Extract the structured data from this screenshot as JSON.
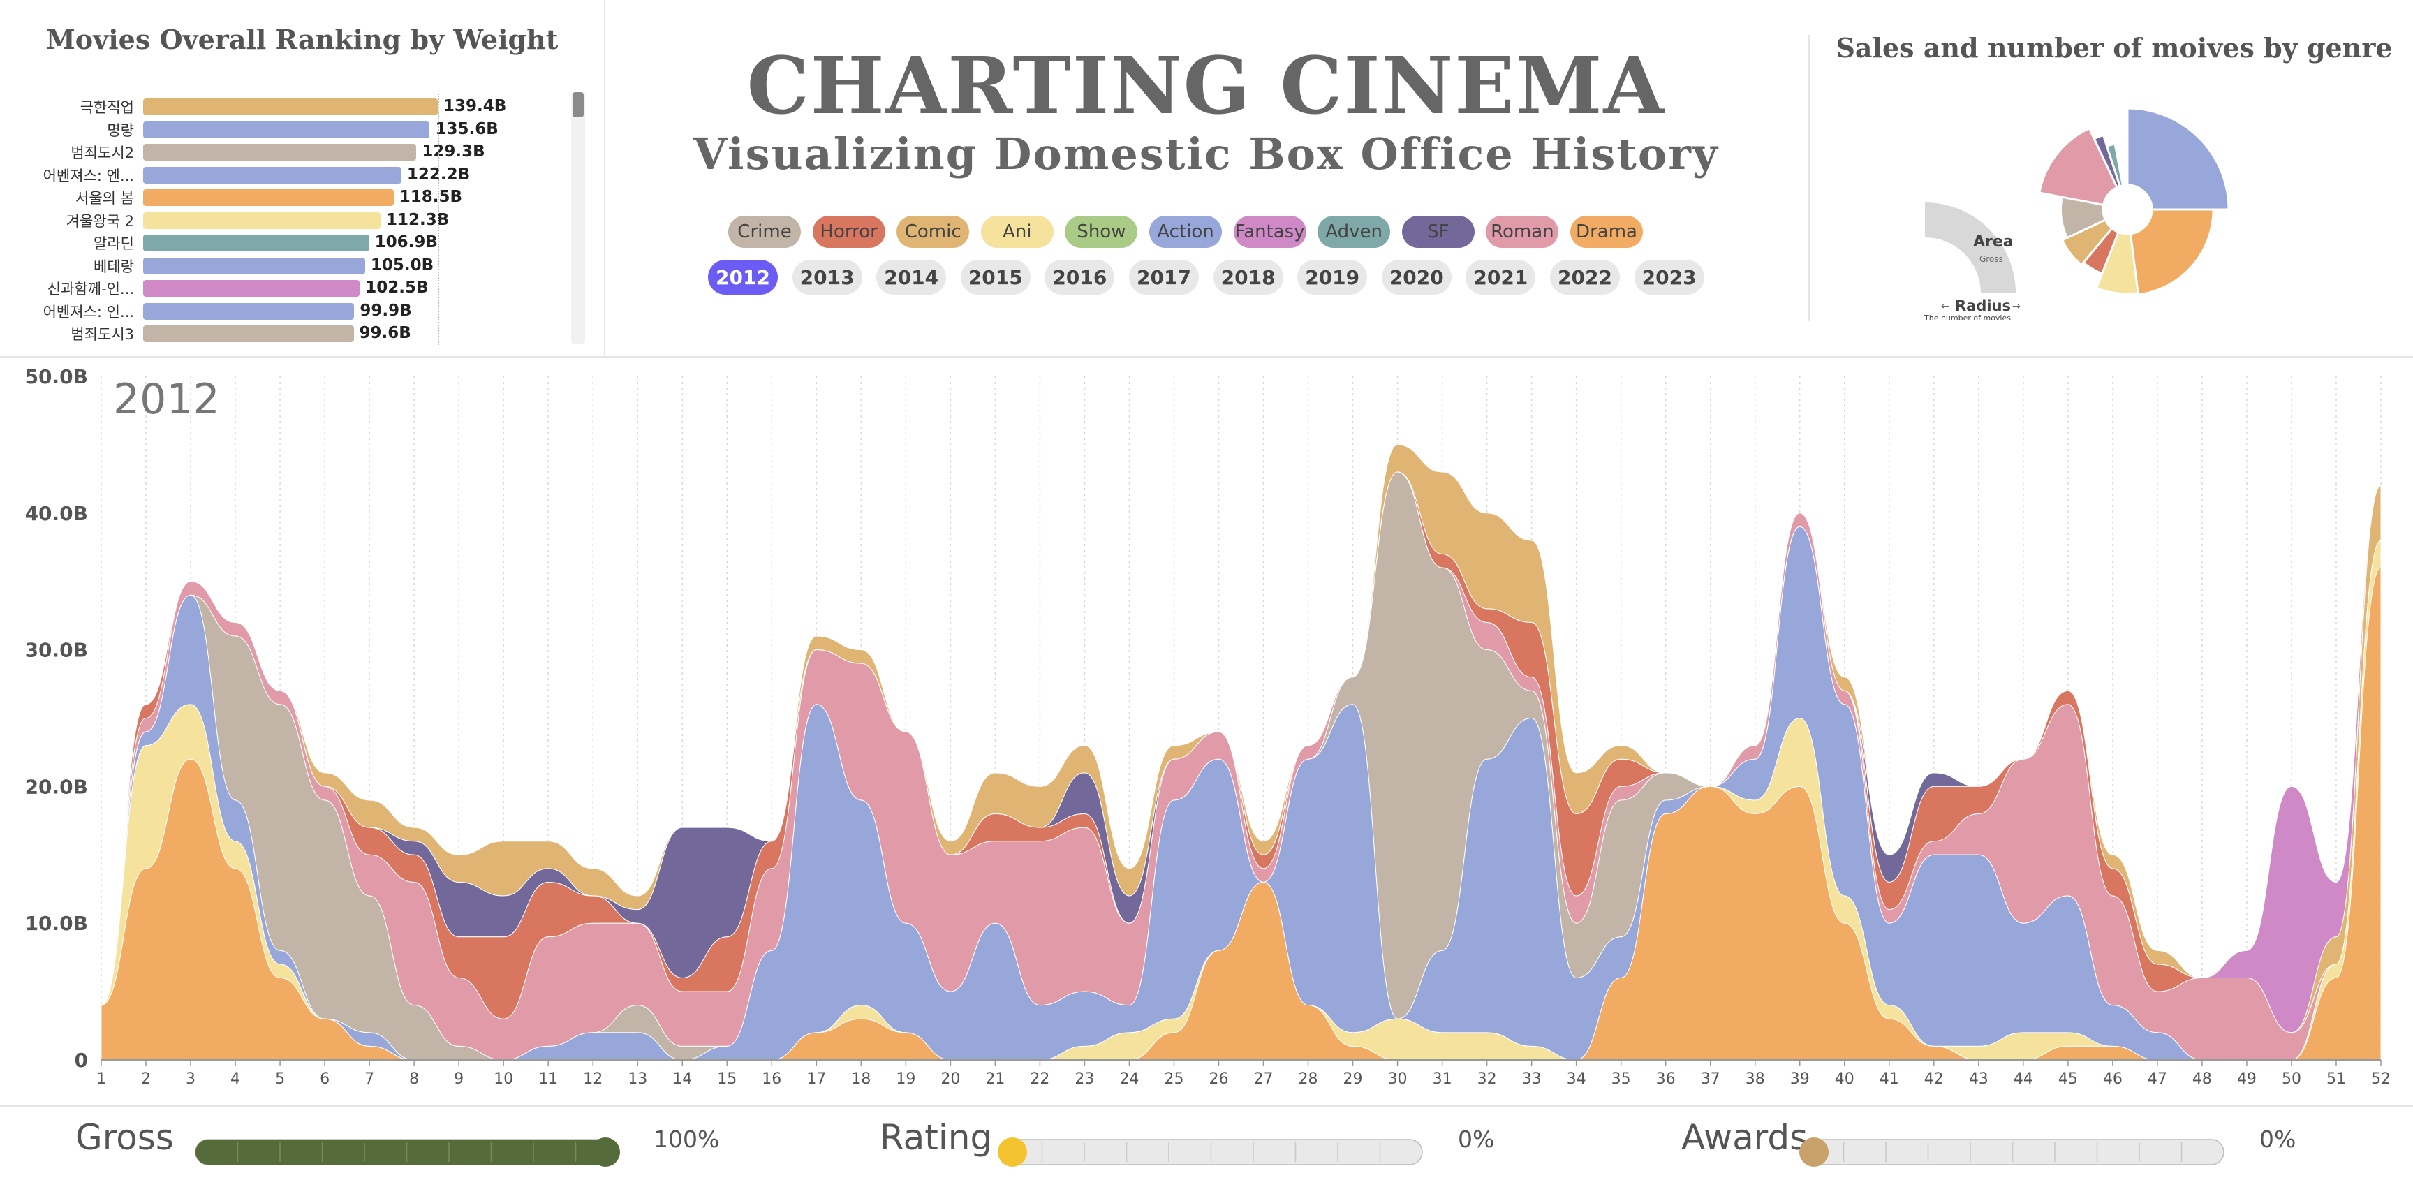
{
  "ranking": {
    "title": "Movies Overall Ranking by Weight",
    "items": [
      {
        "label": "극한직업",
        "value": "139.4B",
        "amount": 139.4,
        "color": "#e0b574"
      },
      {
        "label": "명량",
        "value": "135.6B",
        "amount": 135.6,
        "color": "#98a7d9"
      },
      {
        "label": "범죄도시2",
        "value": "129.3B",
        "amount": 129.3,
        "color": "#c2b5a8"
      },
      {
        "label": "어벤져스: 엔...",
        "value": "122.2B",
        "amount": 122.2,
        "color": "#98a7d9"
      },
      {
        "label": "서울의 봄",
        "value": "118.5B",
        "amount": 118.5,
        "color": "#f2ab63"
      },
      {
        "label": "겨울왕국 2",
        "value": "112.3B",
        "amount": 112.3,
        "color": "#f5e29d"
      },
      {
        "label": "알라딘",
        "value": "106.9B",
        "amount": 106.9,
        "color": "#7fa9a8"
      },
      {
        "label": "베테랑",
        "value": "105.0B",
        "amount": 105.0,
        "color": "#98a7d9"
      },
      {
        "label": "신과함께-인...",
        "value": "102.5B",
        "amount": 102.5,
        "color": "#cf89c7"
      },
      {
        "label": "어벤져스: 인...",
        "value": "99.9B",
        "amount": 99.9,
        "color": "#98a7d9"
      },
      {
        "label": "범죄도시3",
        "value": "99.6B",
        "amount": 99.6,
        "color": "#c2b5a8"
      }
    ]
  },
  "header": {
    "title": "CHARTING CINEMA",
    "subtitle": "Visualizing Domestic Box Office History"
  },
  "genres": [
    {
      "label": "Crime",
      "color": "#c2b5a8"
    },
    {
      "label": "Horror",
      "color": "#d9765f"
    },
    {
      "label": "Comic",
      "color": "#e0b574"
    },
    {
      "label": "Ani",
      "color": "#f5e29d"
    },
    {
      "label": "Show",
      "color": "#a9cb86"
    },
    {
      "label": "Action",
      "color": "#98a7d9"
    },
    {
      "label": "Fantasy",
      "color": "#cf89c7"
    },
    {
      "label": "Adven",
      "color": "#7fa9a8"
    },
    {
      "label": "SF",
      "color": "#72689a"
    },
    {
      "label": "Roman",
      "color": "#e09aa8"
    },
    {
      "label": "Drama",
      "color": "#f2ab63"
    }
  ],
  "years": [
    "2012",
    "2013",
    "2014",
    "2015",
    "2016",
    "2017",
    "2018",
    "2019",
    "2020",
    "2021",
    "2022",
    "2023"
  ],
  "selected_year": "2012",
  "pie": {
    "title": "Sales and number of moives by genre",
    "legend_area": "Area",
    "legend_area_sub": "Gross",
    "legend_radius": "Radius",
    "legend_radius_sub": "The number of movies",
    "slices": [
      {
        "genre": "Action",
        "share": 0.25,
        "radius": 1.0
      },
      {
        "genre": "Drama",
        "share": 0.23,
        "radius": 0.8
      },
      {
        "genre": "Ani",
        "share": 0.08,
        "radius": 0.78
      },
      {
        "genre": "Horror",
        "share": 0.05,
        "radius": 0.58
      },
      {
        "genre": "Comic",
        "share": 0.07,
        "radius": 0.62
      },
      {
        "genre": "Crime",
        "share": 0.1,
        "radius": 0.55
      },
      {
        "genre": "Roman",
        "share": 0.15,
        "radius": 0.85
      },
      {
        "genre": "SF",
        "share": 0.02,
        "radius": 0.7
      },
      {
        "genre": "Adven",
        "share": 0.02,
        "radius": 0.55
      }
    ]
  },
  "chart_data": {
    "type": "area",
    "title": "2012",
    "xlabel": "",
    "ylabel": "",
    "ylim": [
      0,
      50
    ],
    "y_ticks": [
      "0",
      "10.0B",
      "20.0B",
      "30.0B",
      "40.0B",
      "50.0B"
    ],
    "x": [
      1,
      2,
      3,
      4,
      5,
      6,
      7,
      8,
      9,
      10,
      11,
      12,
      13,
      14,
      15,
      16,
      17,
      18,
      19,
      20,
      21,
      22,
      23,
      24,
      25,
      26,
      27,
      28,
      29,
      30,
      31,
      32,
      33,
      34,
      35,
      36,
      37,
      38,
      39,
      40,
      41,
      42,
      43,
      44,
      45,
      46,
      47,
      48,
      49,
      50,
      51,
      52
    ],
    "grid": "vertical dotted",
    "stacked": true,
    "series": [
      {
        "name": "Drama",
        "values": [
          4,
          14,
          22,
          14,
          6,
          3,
          1,
          0,
          0,
          0,
          0,
          0,
          0,
          0,
          0,
          0,
          2,
          3,
          2,
          0,
          0,
          0,
          0,
          0,
          2,
          8,
          13,
          4,
          1,
          0,
          0,
          0,
          0,
          0,
          6,
          18,
          20,
          18,
          20,
          10,
          3,
          1,
          0,
          0,
          1,
          1,
          0,
          0,
          0,
          0,
          6,
          36
        ]
      },
      {
        "name": "Ani",
        "values": [
          0,
          9,
          4,
          2,
          1,
          0,
          0,
          0,
          0,
          0,
          0,
          0,
          0,
          0,
          0,
          0,
          0,
          1,
          0,
          0,
          0,
          0,
          1,
          2,
          1,
          0,
          0,
          0,
          1,
          3,
          2,
          2,
          1,
          0,
          0,
          0,
          0,
          1,
          5,
          2,
          1,
          0,
          1,
          2,
          1,
          0,
          0,
          0,
          0,
          0,
          1,
          2
        ]
      },
      {
        "name": "Action",
        "values": [
          0,
          1,
          8,
          3,
          1,
          0,
          1,
          0,
          0,
          0,
          1,
          2,
          2,
          0,
          1,
          8,
          24,
          15,
          8,
          5,
          10,
          4,
          4,
          2,
          16,
          14,
          0,
          18,
          24,
          0,
          6,
          20,
          24,
          6,
          3,
          1,
          0,
          3,
          14,
          14,
          6,
          14,
          14,
          8,
          10,
          3,
          2,
          0,
          0,
          0,
          0,
          0
        ]
      },
      {
        "name": "Crime",
        "values": [
          0,
          0,
          0,
          12,
          18,
          16,
          10,
          4,
          1,
          0,
          0,
          0,
          2,
          1,
          0,
          0,
          0,
          0,
          0,
          0,
          0,
          0,
          0,
          0,
          0,
          0,
          0,
          0,
          2,
          40,
          28,
          8,
          2,
          4,
          10,
          2,
          0,
          0,
          0,
          0,
          0,
          0,
          0,
          0,
          0,
          0,
          0,
          0,
          0,
          0,
          0,
          0
        ]
      },
      {
        "name": "Roman",
        "values": [
          0,
          1,
          1,
          1,
          1,
          1,
          3,
          9,
          5,
          3,
          8,
          8,
          6,
          4,
          4,
          6,
          4,
          10,
          14,
          10,
          6,
          12,
          12,
          6,
          3,
          2,
          1,
          1,
          0,
          0,
          0,
          2,
          1,
          2,
          1,
          0,
          0,
          1,
          1,
          1,
          1,
          1,
          3,
          12,
          14,
          8,
          3,
          6,
          6,
          2,
          0,
          0
        ]
      },
      {
        "name": "Horror",
        "values": [
          0,
          1,
          0,
          0,
          0,
          0,
          2,
          2,
          3,
          6,
          4,
          2,
          0,
          1,
          4,
          2,
          0,
          0,
          0,
          0,
          2,
          1,
          1,
          0,
          0,
          0,
          1,
          0,
          0,
          0,
          1,
          1,
          4,
          6,
          2,
          0,
          0,
          0,
          0,
          0,
          2,
          4,
          2,
          0,
          1,
          2,
          2,
          0,
          0,
          0,
          0,
          0
        ]
      },
      {
        "name": "SF",
        "values": [
          0,
          0,
          0,
          0,
          0,
          0,
          0,
          1,
          4,
          3,
          1,
          0,
          1,
          11,
          8,
          0,
          0,
          0,
          0,
          0,
          0,
          0,
          3,
          2,
          0,
          0,
          0,
          0,
          0,
          0,
          0,
          0,
          0,
          0,
          0,
          0,
          0,
          0,
          0,
          0,
          2,
          1,
          0,
          0,
          0,
          0,
          0,
          0,
          0,
          0,
          0,
          0
        ]
      },
      {
        "name": "Comic",
        "values": [
          0,
          0,
          0,
          0,
          0,
          1,
          2,
          1,
          2,
          4,
          2,
          2,
          1,
          0,
          0,
          0,
          1,
          1,
          0,
          1,
          3,
          3,
          2,
          2,
          1,
          0,
          1,
          0,
          0,
          2,
          6,
          7,
          6,
          3,
          1,
          0,
          0,
          0,
          0,
          1,
          0,
          0,
          0,
          0,
          0,
          1,
          1,
          0,
          0,
          0,
          2,
          4
        ]
      },
      {
        "name": "Fantasy",
        "values": [
          0,
          0,
          0,
          0,
          0,
          0,
          0,
          0,
          0,
          0,
          0,
          0,
          0,
          0,
          0,
          0,
          0,
          0,
          0,
          0,
          0,
          0,
          0,
          0,
          0,
          0,
          0,
          0,
          0,
          0,
          0,
          0,
          0,
          0,
          0,
          0,
          0,
          0,
          0,
          0,
          0,
          0,
          0,
          0,
          0,
          0,
          0,
          0,
          2,
          18,
          4,
          0
        ]
      }
    ]
  },
  "controls": {
    "gross_label": "Gross",
    "gross_value": "100%",
    "gross_level": 1.0,
    "rating_label": "Rating",
    "rating_value": "0%",
    "rating_level": 0,
    "awards_label": "Awards",
    "awards_value": "0%",
    "awards_level": 0,
    "gross_color": "#556b3a",
    "rating_color": "#f4c430",
    "awards_color": "#c9a26b"
  }
}
